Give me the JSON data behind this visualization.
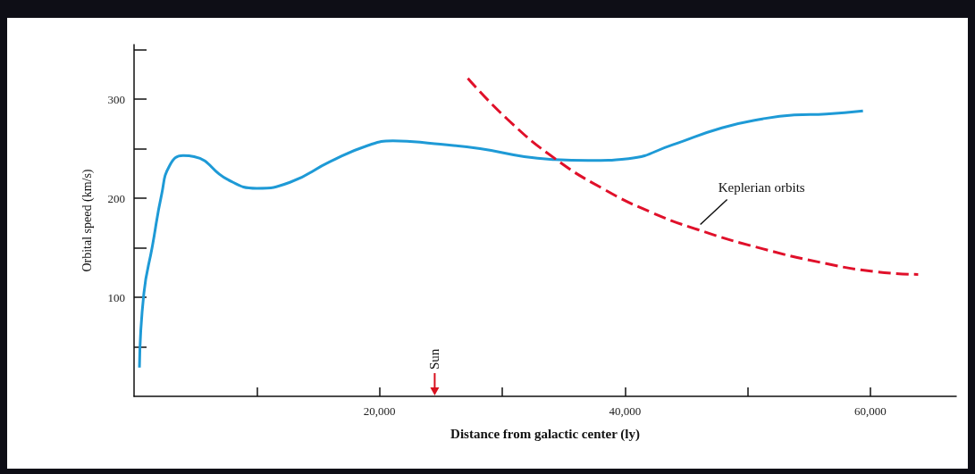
{
  "chart_data": {
    "type": "line",
    "xlabel": "Distance from galactic center (ly)",
    "ylabel": "Orbital speed (km/s)",
    "xlim": [
      0,
      67000
    ],
    "xticks": [
      {
        "value": 10000,
        "label": null
      },
      {
        "value": 20000,
        "label": "20,000"
      },
      {
        "value": 30000,
        "label": null
      },
      {
        "value": 40000,
        "label": "40,000"
      },
      {
        "value": 50000,
        "label": null
      },
      {
        "value": 60000,
        "label": "60,000"
      }
    ],
    "ylim": [
      0,
      355
    ],
    "yticks": [
      {
        "value": 50,
        "label": null
      },
      100,
      {
        "value": 150,
        "label": null
      },
      200,
      {
        "value": 250,
        "label": null
      },
      300,
      {
        "value": 350,
        "label": null
      }
    ],
    "grid": false,
    "legend": false,
    "marker": "none",
    "series": [
      {
        "color": "#1e9ad6",
        "line_style": "solid",
        "x": [
          440,
          800,
          1500,
          2250,
          2900,
          4000,
          4900,
          7600,
          10000,
          12700,
          16000,
          19000,
          21100,
          24500,
          28200,
          31800,
          34300,
          37000,
          40300,
          43900,
          47900,
          51200,
          53800,
          56400,
          59400
        ],
        "values": [
          29,
          104,
          152,
          204,
          233,
          243,
          242,
          219,
          210,
          216,
          237,
          253,
          258,
          255,
          250,
          242,
          239,
          238,
          240,
          254,
          271,
          280,
          284,
          285,
          288
        ]
      },
      {
        "name": "Keplerian orbits",
        "color": "#e0102a",
        "line_style": "dashed",
        "x": [
          27200,
          30400,
          34300,
          38300,
          42100,
          46000,
          51200,
          56400,
          60300,
          63900
        ],
        "values": [
          321,
          280,
          240,
          209,
          186,
          168,
          149,
          134,
          126,
          123
        ]
      }
    ],
    "ref_lines": [
      {
        "axis": "x",
        "value": 24500,
        "label": "Sun",
        "color": "#d8101e"
      }
    ]
  }
}
